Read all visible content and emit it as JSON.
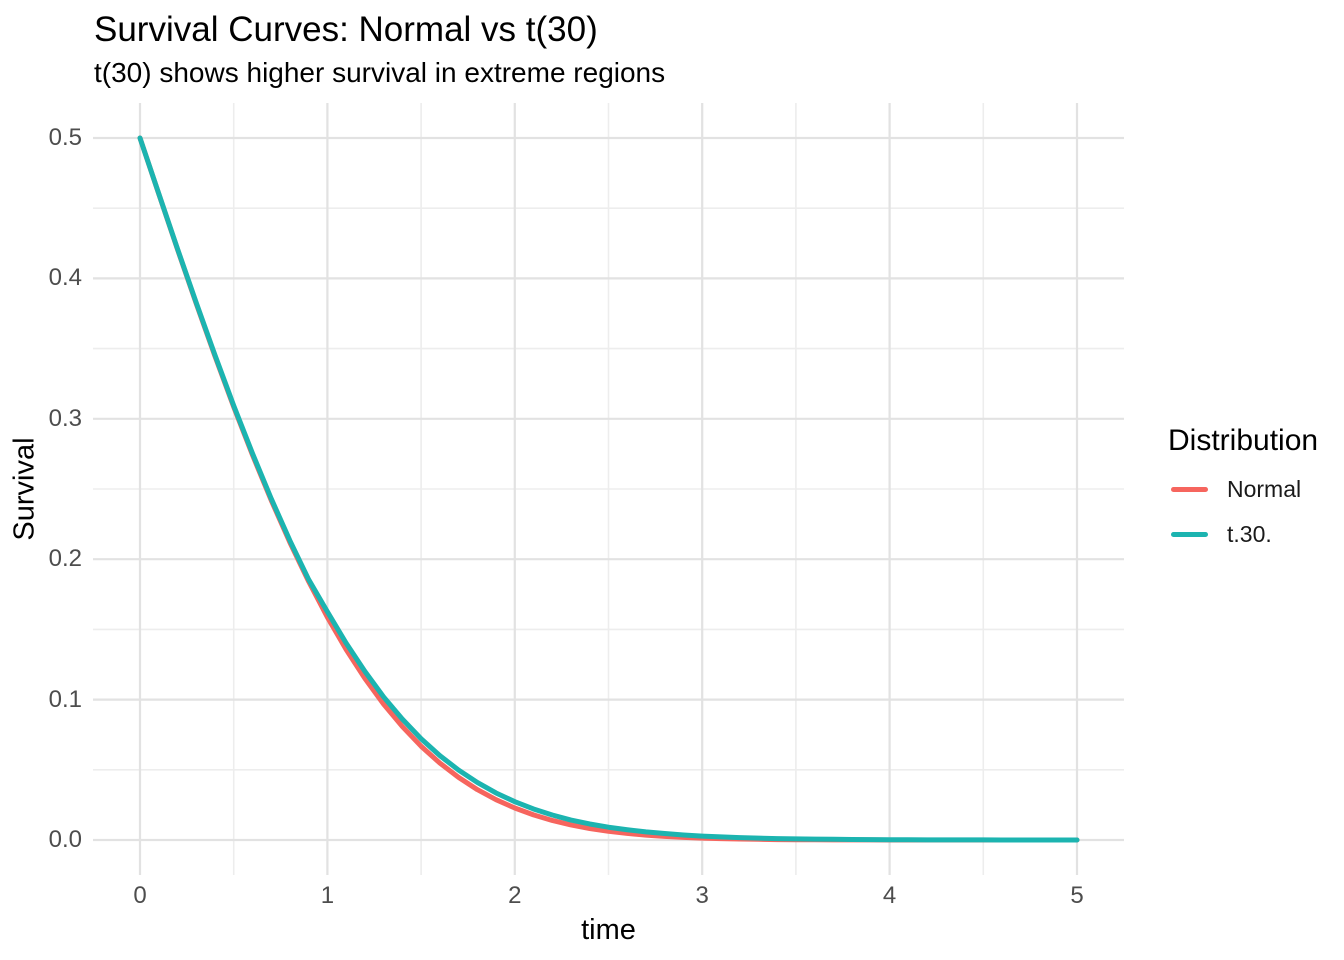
{
  "figure": {
    "background": "#FFFFFF",
    "title_color": "#000000",
    "tick_label_color": "#4D4D4D"
  },
  "chart_data": {
    "type": "line",
    "title": "Survival Curves: Normal vs t(30)",
    "subtitle": "t(30) shows higher survival in extreme regions",
    "xlabel": "time",
    "ylabel": "Survival",
    "xlim": [
      0,
      5
    ],
    "ylim": [
      0,
      0.5
    ],
    "x_ticks": [
      0,
      1,
      2,
      3,
      4,
      5
    ],
    "y_ticks": [
      0,
      0.1,
      0.2,
      0.3,
      0.4,
      0.5
    ],
    "y_tick_labels": [
      "0.0",
      "0.1",
      "0.2",
      "0.3",
      "0.4",
      "0.5"
    ],
    "x_minor_ticks": [
      0.5,
      1.5,
      2.5,
      3.5,
      4.5
    ],
    "y_minor_ticks": [
      0.05,
      0.15,
      0.25,
      0.35,
      0.45
    ],
    "grid": {
      "show": true,
      "major_color": "#E2E2E2",
      "minor_color": "#EDEDED"
    },
    "legend": {
      "title": "Distribution",
      "position": "right",
      "items": [
        {
          "label": "Normal",
          "color": "#F6655E"
        },
        {
          "label": "t.30.",
          "color": "#1CB4B0"
        }
      ]
    },
    "x": [
      0,
      0.1,
      0.2,
      0.3,
      0.4,
      0.5,
      0.6,
      0.7,
      0.8,
      0.9,
      1.0,
      1.1,
      1.2,
      1.3,
      1.4,
      1.5,
      1.6,
      1.7,
      1.8,
      1.9,
      2.0,
      2.1,
      2.2,
      2.3,
      2.4,
      2.5,
      2.6,
      2.7,
      2.8,
      2.9,
      3.0,
      3.1,
      3.2,
      3.3,
      3.4,
      3.5,
      3.6,
      3.7,
      3.8,
      3.9,
      4.0,
      4.1,
      4.2,
      4.3,
      4.4,
      4.5,
      4.6,
      4.7,
      4.8,
      4.9,
      5.0
    ],
    "series": [
      {
        "name": "Normal",
        "color": "#F6655E",
        "values": [
          0.5,
          0.4602,
          0.4207,
          0.3821,
          0.3446,
          0.3085,
          0.2743,
          0.242,
          0.2119,
          0.1841,
          0.1587,
          0.1357,
          0.1151,
          0.0968,
          0.0808,
          0.0668,
          0.0548,
          0.0446,
          0.0359,
          0.0287,
          0.0228,
          0.0179,
          0.0139,
          0.0107,
          0.0082,
          0.0062,
          0.0047,
          0.0035,
          0.0026,
          0.0019,
          0.0013,
          0.001,
          0.0007,
          0.0005,
          0.0003,
          0.0002,
          0.00016,
          0.00011,
          7e-05,
          5e-05,
          3e-05,
          2e-05,
          1e-05,
          1e-05,
          1e-05,
          0.0,
          0.0,
          0.0,
          0.0,
          0.0,
          0.0
        ]
      },
      {
        "name": "t.30.",
        "color": "#1CB4B0",
        "values": [
          0.5,
          0.4604,
          0.4211,
          0.3827,
          0.3454,
          0.3094,
          0.2754,
          0.2432,
          0.2132,
          0.1855,
          0.1626,
          0.1402,
          0.1201,
          0.1019,
          0.0861,
          0.0721,
          0.0601,
          0.0498,
          0.041,
          0.0335,
          0.0273,
          0.0221,
          0.0178,
          0.0142,
          0.0114,
          0.0091,
          0.0073,
          0.0058,
          0.0046,
          0.0036,
          0.0028,
          0.0022,
          0.0017,
          0.0013,
          0.001,
          0.0008,
          0.0006,
          0.0005,
          0.0004,
          0.0003,
          0.0002,
          0.00016,
          0.00012,
          9e-05,
          7e-05,
          6e-05,
          4e-05,
          3e-05,
          3e-05,
          2e-05,
          2e-05
        ]
      }
    ]
  }
}
